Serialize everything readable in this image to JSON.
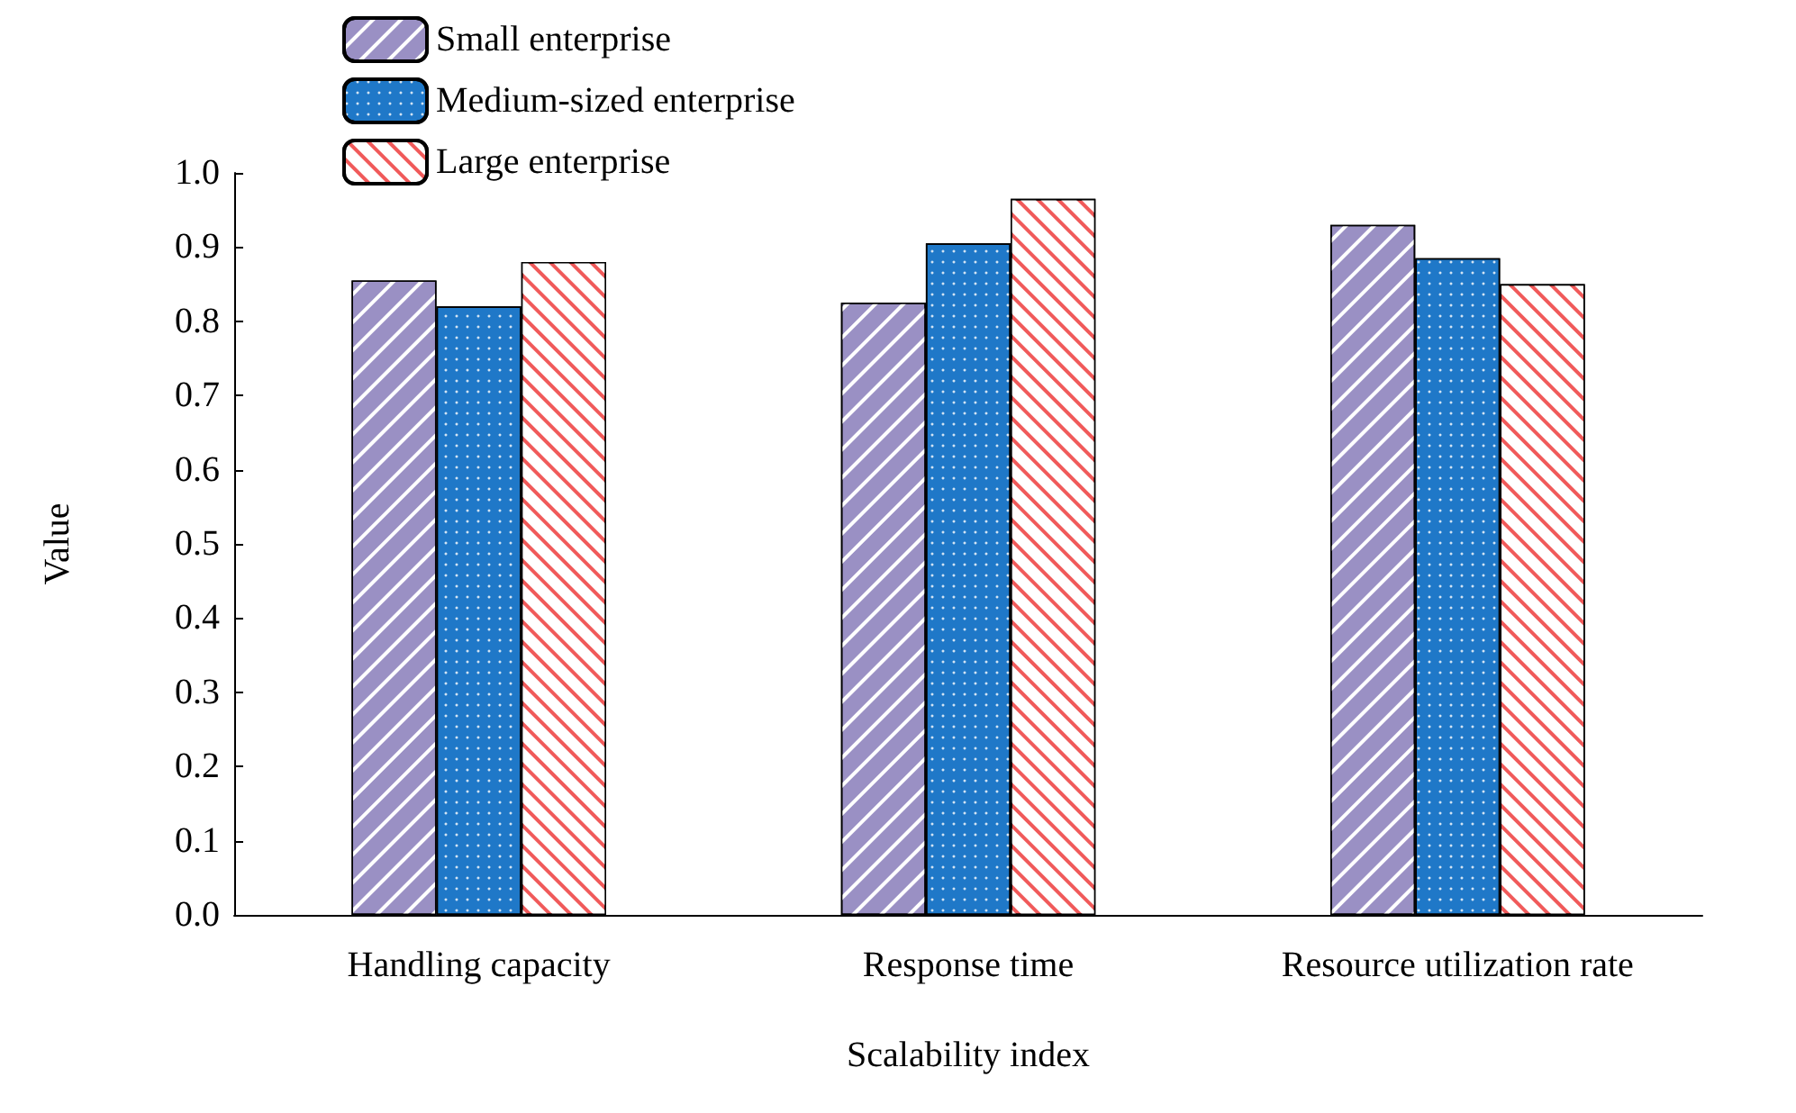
{
  "chart_data": {
    "type": "bar",
    "xlabel": "Scalability index",
    "ylabel": "Value",
    "categories": [
      "Handling capacity",
      "Response time",
      "Resource utilization rate"
    ],
    "series": [
      {
        "name": "Small enterprise",
        "color": "#9a90c4",
        "values": [
          0.855,
          0.825,
          0.93
        ]
      },
      {
        "name": "Medium-sized enterprise",
        "color": "#1f78c8",
        "values": [
          0.82,
          0.905,
          0.885
        ]
      },
      {
        "name": "Large enterprise",
        "color": "#f05a5a",
        "values": [
          0.88,
          0.965,
          0.85
        ]
      }
    ],
    "ylim": [
      0,
      1
    ],
    "yticks": [
      {
        "value": 0,
        "label": "0.0"
      },
      {
        "value": 0.1,
        "label": "0.1"
      },
      {
        "value": 0.2,
        "label": "0.2"
      },
      {
        "value": 0.3,
        "label": "0.3"
      },
      {
        "value": 0.4,
        "label": "0.4"
      },
      {
        "value": 0.5,
        "label": "0.5"
      },
      {
        "value": 0.6,
        "label": "0.6"
      },
      {
        "value": 0.7,
        "label": "0.7"
      },
      {
        "value": 0.8,
        "label": "0.8"
      },
      {
        "value": 0.9,
        "label": "0.9"
      },
      {
        "value": 1,
        "label": "1.0"
      }
    ],
    "grid": false,
    "legend": "top left"
  }
}
